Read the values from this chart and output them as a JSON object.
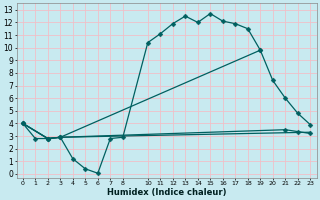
{
  "xlabel": "Humidex (Indice chaleur)",
  "bg_color": "#c8eaf0",
  "grid_color": "#f0c0c8",
  "line_color": "#006060",
  "xlim": [
    -0.5,
    23.5
  ],
  "ylim": [
    -0.3,
    13.5
  ],
  "xticks": [
    0,
    1,
    2,
    3,
    4,
    5,
    6,
    7,
    8,
    10,
    11,
    12,
    13,
    14,
    15,
    16,
    17,
    18,
    19,
    20,
    21,
    22,
    23
  ],
  "yticks": [
    0,
    1,
    2,
    3,
    4,
    5,
    6,
    7,
    8,
    9,
    10,
    11,
    12,
    13
  ],
  "series": [
    {
      "x": [
        0,
        1,
        2,
        3,
        4,
        5,
        6,
        7,
        8,
        10,
        11,
        12,
        13,
        14,
        15,
        16,
        17,
        18,
        19
      ],
      "y": [
        4.0,
        2.8,
        2.8,
        2.9,
        1.2,
        0.4,
        0.05,
        2.8,
        2.9,
        10.4,
        11.1,
        11.9,
        12.5,
        12.0,
        12.7,
        12.1,
        11.9,
        11.5,
        9.8
      ],
      "marker": "D",
      "markersize": 2.5,
      "lw": 0.9
    },
    {
      "x": [
        0,
        2,
        3,
        19,
        20,
        21,
        22,
        23
      ],
      "y": [
        4.0,
        2.8,
        2.9,
        9.8,
        7.4,
        6.0,
        4.8,
        3.9
      ],
      "marker": "D",
      "markersize": 2.5,
      "lw": 0.9
    },
    {
      "x": [
        0,
        2,
        3,
        21,
        22,
        23
      ],
      "y": [
        4.0,
        2.8,
        2.9,
        3.5,
        3.35,
        3.2
      ],
      "marker": "D",
      "markersize": 2.5,
      "lw": 0.9
    },
    {
      "x": [
        0,
        2,
        3,
        23
      ],
      "y": [
        4.0,
        2.8,
        2.9,
        3.3
      ],
      "marker": null,
      "markersize": 0,
      "lw": 0.9
    }
  ]
}
